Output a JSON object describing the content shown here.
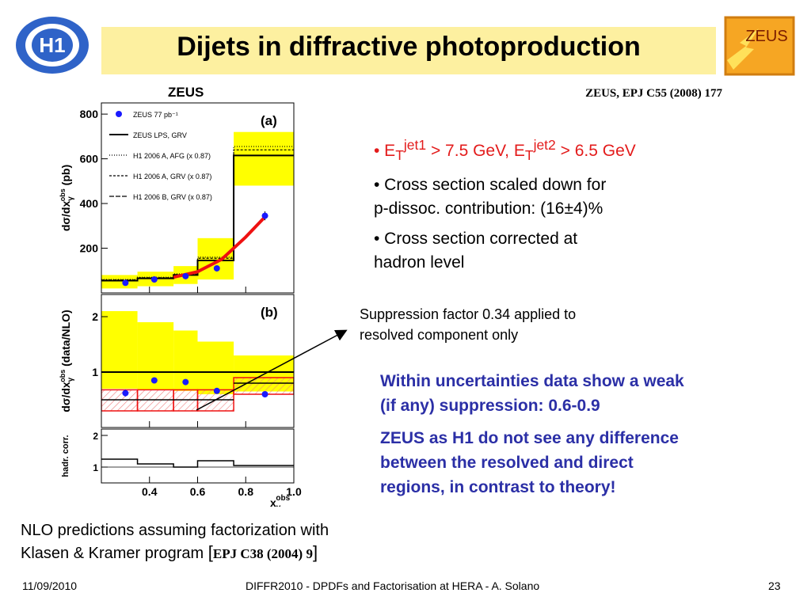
{
  "header": {
    "title": "Dijets in diffractive photoproduction",
    "h1_logo": "H1",
    "zeus_logo": "ZEUS",
    "reference": "ZEUS, EPJ C55 (2008) 177"
  },
  "bullets": {
    "cut_prefix": "• E",
    "cut_sub1": "T",
    "cut_sup1": "jet1",
    "cut_mid": " > 7.5 GeV,  E",
    "cut_sub2": "T",
    "cut_sup2": "jet2",
    "cut_end": " > 6.5 GeV",
    "scaled_1": "• Cross section scaled down for",
    "scaled_2": "p-dissoc. contribution: (16±4)%",
    "corrected_1": "• Cross section corrected at",
    "corrected_2": "hadron level"
  },
  "suppression_note": {
    "line1": "Suppression factor 0.34 applied to",
    "line2": "resolved component only"
  },
  "conclusion": {
    "line1": "Within uncertainties data show a weak",
    "line2": "(if any) suppression: 0.6-0.9",
    "line3": "ZEUS as H1 do not see any difference",
    "line4": "between the resolved and direct",
    "line5": "regions, in contrast to theory!"
  },
  "nlo_note": {
    "line1": "NLO predictions assuming factorization with",
    "line2_text": "Klasen & Kramer program ",
    "open_bracket": "[",
    "citation": "EPJ C38 (2004) 9",
    "close_bracket": "]"
  },
  "footer": {
    "date": "11/09/2010",
    "center": "DIFFR2010  -  DPDFs and Factorisation at HERA  -  A. Solano",
    "page": "23"
  },
  "colors": {
    "title_bg": "#fdf0a0",
    "bullet_red": "#e31b1b",
    "conclusion_blue": "#2b2fa6",
    "band_yellow": "#ffff00",
    "data_blue": "#1a1aff",
    "theory_red": "#ee1111"
  },
  "chart_data": {
    "type": "line",
    "title": "ZEUS",
    "x_tick_labels": [
      "0.4",
      "0.6",
      "0.8",
      "1.0"
    ],
    "xlabel": "x",
    "xlabel_sub": "γ",
    "xlabel_sup": "obs",
    "xlim": [
      0.2,
      1.0
    ],
    "bin_edges": [
      0.2,
      0.35,
      0.5,
      0.6,
      0.75,
      1.0
    ],
    "panels": [
      {
        "label": "(a)",
        "ylabel": "dσ/dx",
        "ylabel_sub": "γ",
        "ylabel_sup": "obs",
        "yunit": "(pb)",
        "ylim": [
          0,
          850
        ],
        "y_tick_labels": [
          "200",
          "400",
          "600",
          "800"
        ],
        "legend": [
          "ZEUS 77 pb⁻¹",
          "ZEUS LPS, GRV",
          "H1 2006 A, AFG (x 0.87)",
          "H1 2006 A, GRV (x 0.87)",
          "H1 2006 B, GRV (x 0.87)"
        ],
        "data_x": [
          0.3,
          0.42,
          0.55,
          0.68,
          0.88
        ],
        "data_y": [
          45,
          60,
          75,
          110,
          345
        ],
        "data_err": [
          5,
          5,
          6,
          8,
          20
        ],
        "band_low": [
          20,
          30,
          40,
          60,
          480
        ],
        "band_high": [
          80,
          95,
          120,
          245,
          720
        ],
        "theory_central": [
          55,
          65,
          80,
          145,
          615
        ],
        "theory_afg": [
          60,
          70,
          85,
          160,
          655
        ],
        "theory_grv": [
          58,
          68,
          82,
          155,
          640
        ],
        "red_curve_x": [
          0.5,
          0.6,
          0.7,
          0.8,
          0.88
        ],
        "red_curve_y": [
          70,
          95,
          150,
          250,
          340
        ]
      },
      {
        "label": "(b)",
        "ylabel": "dσ/dx",
        "ylabel_sub": "γ",
        "ylabel_sup": "obs",
        "yunit": "(data/NLO)",
        "ylim": [
          0,
          2.4
        ],
        "y_tick_labels": [
          "1",
          "2"
        ],
        "data_x": [
          0.3,
          0.42,
          0.55,
          0.68,
          0.88
        ],
        "data_y": [
          0.62,
          0.85,
          0.82,
          0.66,
          0.6
        ],
        "data_err": [
          0.06,
          0.05,
          0.05,
          0.05,
          0.05
        ],
        "band_low": [
          0.7,
          0.68,
          0.66,
          0.6,
          0.65
        ],
        "band_high": [
          2.1,
          1.9,
          1.75,
          1.55,
          1.3
        ],
        "ratio_suppressed": [
          0.5,
          0.5,
          0.5,
          0.5,
          0.8
        ],
        "ratio_band_low": [
          0.3,
          0.3,
          0.3,
          0.3,
          0.6
        ],
        "ratio_band_high": [
          0.68,
          0.68,
          0.68,
          0.68,
          0.9
        ],
        "unity_line": 1.0
      },
      {
        "label": "",
        "ylabel": "hadr. corr.",
        "ylim": [
          0.5,
          2.2
        ],
        "y_tick_labels": [
          "1",
          "2"
        ],
        "hadr_corr": [
          1.25,
          1.1,
          1.0,
          1.2,
          1.05
        ]
      }
    ]
  }
}
